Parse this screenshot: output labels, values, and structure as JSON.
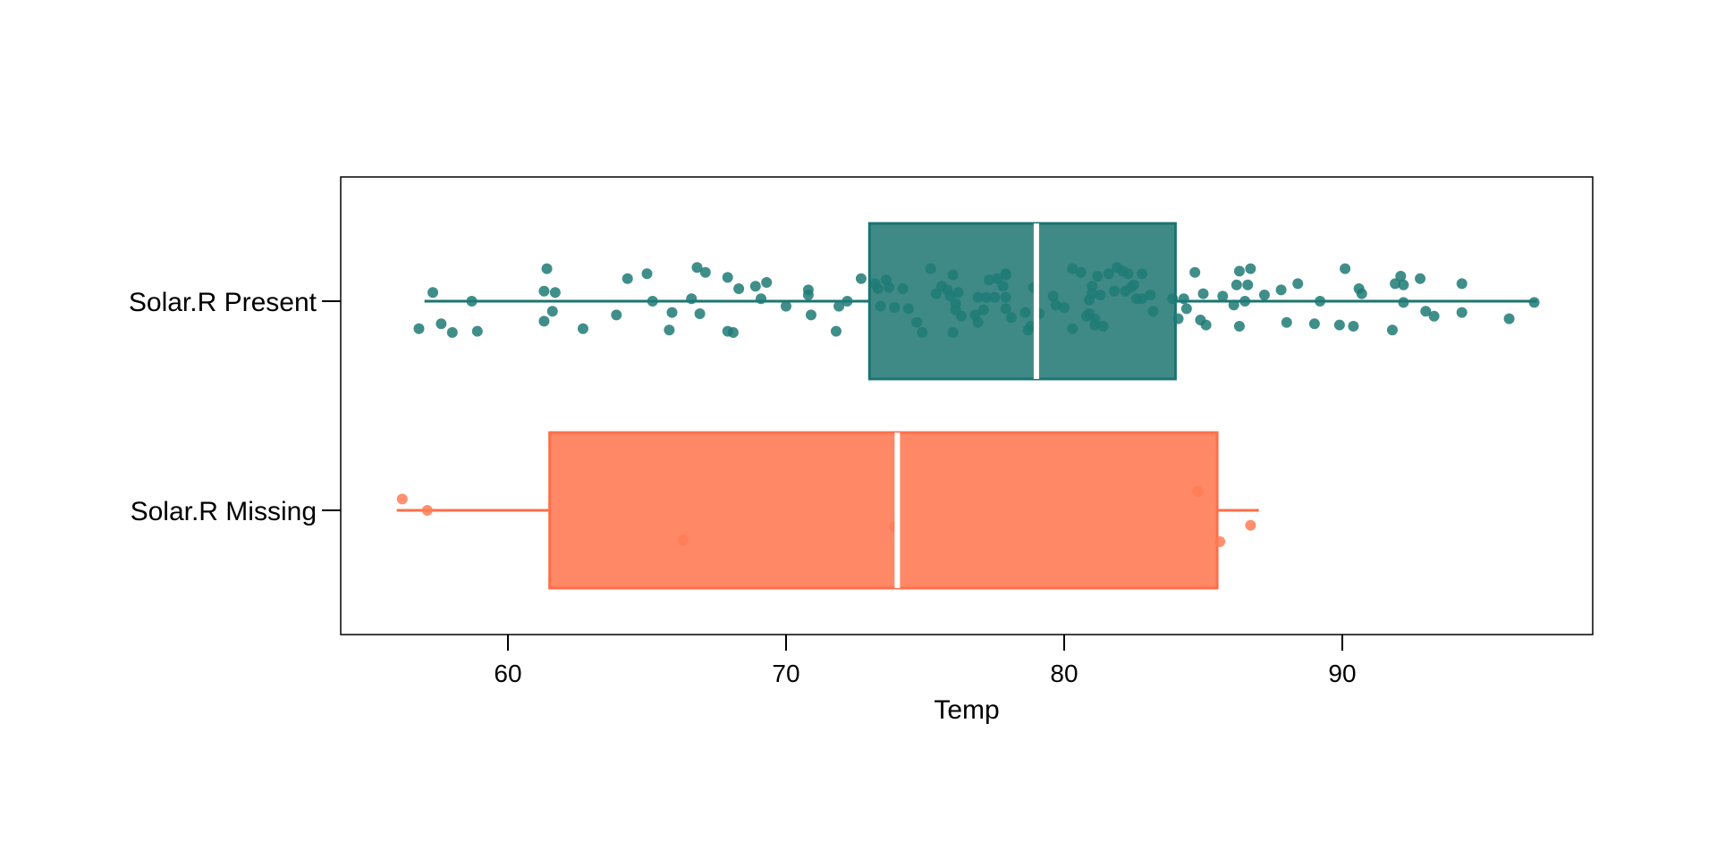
{
  "chart_data": {
    "type": "boxplot",
    "title": "",
    "xlabel": "Temp",
    "ylabel": "",
    "xlim": [
      54,
      99
    ],
    "xticks": [
      60,
      70,
      80,
      90
    ],
    "grid": false,
    "legend": "none",
    "series": [
      {
        "name": "Solar.R Present",
        "color": "#1a7470",
        "fill": "#3f8a87",
        "point_color": "#1f7a76",
        "whisker_low": 57,
        "q1": 73,
        "median": 79,
        "q3": 84,
        "whisker_high": 97,
        "points": [
          [
            56.8,
            -0.22
          ],
          [
            57.3,
            0.07
          ],
          [
            57.6,
            -0.18
          ],
          [
            58.0,
            -0.25
          ],
          [
            58.7,
            0.0
          ],
          [
            58.9,
            -0.24
          ],
          [
            61.3,
            0.08
          ],
          [
            61.3,
            -0.16
          ],
          [
            61.4,
            0.26
          ],
          [
            61.6,
            -0.08
          ],
          [
            61.7,
            0.07
          ],
          [
            62.7,
            -0.22
          ],
          [
            63.9,
            -0.11
          ],
          [
            64.3,
            0.18
          ],
          [
            65.0,
            0.22
          ],
          [
            65.2,
            0.0
          ],
          [
            65.8,
            -0.23
          ],
          [
            65.9,
            -0.09
          ],
          [
            66.6,
            0.02
          ],
          [
            66.8,
            0.27
          ],
          [
            66.9,
            -0.1
          ],
          [
            67.1,
            0.23
          ],
          [
            67.9,
            0.19
          ],
          [
            67.9,
            -0.24
          ],
          [
            68.1,
            -0.25
          ],
          [
            68.3,
            0.1
          ],
          [
            68.9,
            0.12
          ],
          [
            69.1,
            0.02
          ],
          [
            69.3,
            0.15
          ],
          [
            70.0,
            -0.04
          ],
          [
            70.8,
            0.05
          ],
          [
            70.8,
            0.09
          ],
          [
            70.9,
            -0.11
          ],
          [
            71.8,
            -0.24
          ],
          [
            71.9,
            -0.04
          ],
          [
            72.2,
            0.0
          ],
          [
            72.7,
            0.18
          ],
          [
            73.2,
            0.14
          ],
          [
            73.3,
            0.1
          ],
          [
            73.4,
            -0.04
          ],
          [
            73.6,
            0.17
          ],
          [
            73.7,
            0.11
          ],
          [
            73.9,
            -0.05
          ],
          [
            74.2,
            0.1
          ],
          [
            74.4,
            -0.06
          ],
          [
            74.7,
            -0.17
          ],
          [
            74.9,
            -0.25
          ],
          [
            75.2,
            0.26
          ],
          [
            75.4,
            0.06
          ],
          [
            75.6,
            0.12
          ],
          [
            75.8,
            0.09
          ],
          [
            75.9,
            0.04
          ],
          [
            76.0,
            0.21
          ],
          [
            76.0,
            -0.25
          ],
          [
            76.1,
            -0.07
          ],
          [
            76.1,
            -0.02
          ],
          [
            76.2,
            0.07
          ],
          [
            76.3,
            -0.12
          ],
          [
            76.8,
            -0.11
          ],
          [
            76.9,
            -0.17
          ],
          [
            76.9,
            0.03
          ],
          [
            77.1,
            -0.07
          ],
          [
            77.2,
            0.03
          ],
          [
            77.3,
            0.17
          ],
          [
            77.5,
            0.03
          ],
          [
            77.6,
            0.18
          ],
          [
            77.8,
            0.12
          ],
          [
            77.9,
            0.21
          ],
          [
            77.9,
            0.22
          ],
          [
            77.9,
            0.03
          ],
          [
            77.9,
            -0.06
          ],
          [
            78.1,
            -0.13
          ],
          [
            78.6,
            -0.09
          ],
          [
            78.7,
            -0.23
          ],
          [
            78.8,
            -0.2
          ],
          [
            78.9,
            0.11
          ],
          [
            79.1,
            -0.1
          ],
          [
            79.6,
            0.04
          ],
          [
            79.7,
            -0.03
          ],
          [
            80.0,
            -0.05
          ],
          [
            80.3,
            -0.22
          ],
          [
            80.3,
            0.26
          ],
          [
            80.6,
            0.23
          ],
          [
            80.8,
            -0.12
          ],
          [
            80.9,
            0.01
          ],
          [
            80.9,
            -0.1
          ],
          [
            81.0,
            0.12
          ],
          [
            81.0,
            0.06
          ],
          [
            81.1,
            -0.19
          ],
          [
            81.1,
            -0.14
          ],
          [
            81.2,
            0.2
          ],
          [
            81.3,
            0.05
          ],
          [
            81.4,
            -0.2
          ],
          [
            81.6,
            0.22
          ],
          [
            81.8,
            0.08
          ],
          [
            81.9,
            0.27
          ],
          [
            82.1,
            0.24
          ],
          [
            82.2,
            0.08
          ],
          [
            82.3,
            0.22
          ],
          [
            82.4,
            0.11
          ],
          [
            82.5,
            0.13
          ],
          [
            82.6,
            0.02
          ],
          [
            82.8,
            0.02
          ],
          [
            82.8,
            0.22
          ],
          [
            83.1,
            0.05
          ],
          [
            83.2,
            -0.08
          ],
          [
            83.9,
            0.02
          ],
          [
            84.1,
            -0.14
          ],
          [
            84.3,
            0.02
          ],
          [
            84.4,
            -0.06
          ],
          [
            84.7,
            0.23
          ],
          [
            84.9,
            -0.15
          ],
          [
            85.0,
            0.06
          ],
          [
            85.1,
            -0.19
          ],
          [
            85.7,
            0.04
          ],
          [
            86.1,
            -0.03
          ],
          [
            86.2,
            0.13
          ],
          [
            86.3,
            -0.2
          ],
          [
            86.3,
            0.24
          ],
          [
            86.5,
            0.0
          ],
          [
            86.6,
            0.13
          ],
          [
            86.7,
            0.26
          ],
          [
            87.2,
            0.05
          ],
          [
            87.8,
            0.09
          ],
          [
            88.0,
            -0.17
          ],
          [
            88.4,
            0.14
          ],
          [
            89.0,
            -0.18
          ],
          [
            89.2,
            0.0
          ],
          [
            89.9,
            -0.19
          ],
          [
            90.1,
            0.26
          ],
          [
            90.4,
            -0.2
          ],
          [
            90.6,
            0.1
          ],
          [
            90.7,
            0.06
          ],
          [
            91.8,
            -0.23
          ],
          [
            91.9,
            0.14
          ],
          [
            92.1,
            0.2
          ],
          [
            92.2,
            0.13
          ],
          [
            92.2,
            -0.01
          ],
          [
            92.8,
            0.18
          ],
          [
            93.0,
            -0.08
          ],
          [
            93.3,
            -0.12
          ],
          [
            94.3,
            0.14
          ],
          [
            94.3,
            -0.09
          ],
          [
            96.0,
            -0.14
          ],
          [
            96.9,
            -0.01
          ]
        ]
      },
      {
        "name": "Solar.R Missing",
        "color": "#ff6e4a",
        "fill": "#ff8866",
        "point_color": "#ff7b55",
        "whisker_low": 56,
        "q1": 61.5,
        "median": 74,
        "q3": 85.5,
        "whisker_high": 87,
        "points": [
          [
            56.2,
            0.09
          ],
          [
            57.1,
            0.0
          ],
          [
            66.3,
            -0.24
          ],
          [
            73.9,
            -0.13
          ],
          [
            84.8,
            0.15
          ],
          [
            85.6,
            -0.25
          ],
          [
            86.7,
            -0.12
          ]
        ]
      }
    ]
  }
}
